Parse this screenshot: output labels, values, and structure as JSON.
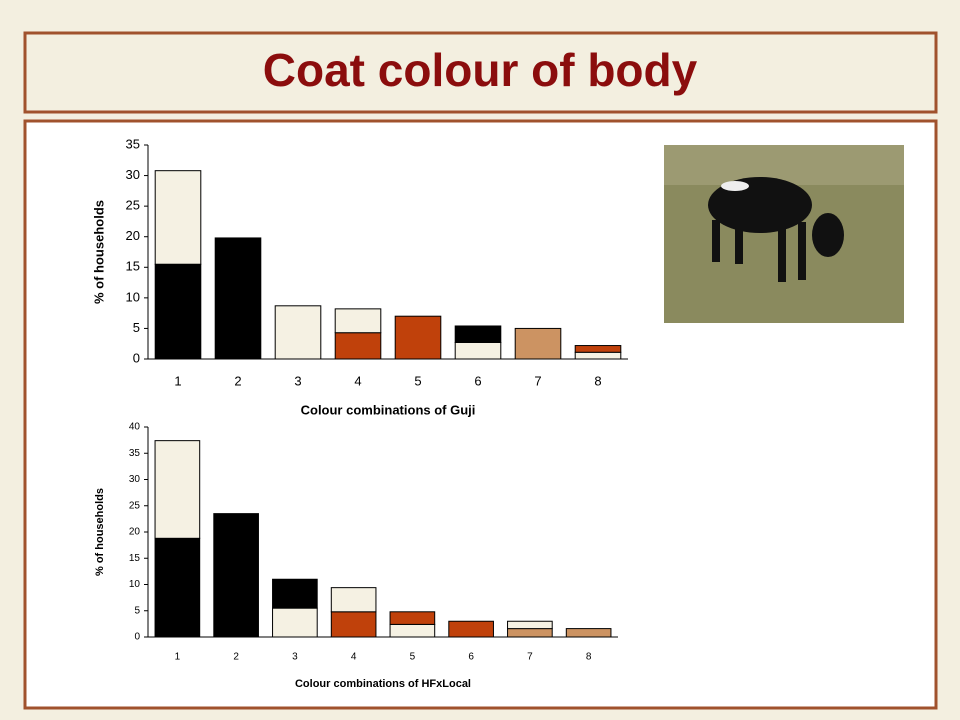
{
  "title": "Coat colour of body",
  "chart_data": [
    {
      "type": "bar",
      "stacked": true,
      "x_label": "Colour combinations of Guji",
      "y_label": "% of households",
      "categories": [
        "1",
        "2",
        "3",
        "4",
        "5",
        "6",
        "7",
        "8"
      ],
      "series": [
        {
          "colors": [
            "#000000",
            "#000000",
            "#f5f1e3",
            "#c0410b",
            "#c0410b",
            "#f5f1e3",
            "#cc9362",
            "#f5f1e3"
          ],
          "values": [
            15.5,
            19.8,
            8.7,
            4.3,
            7.0,
            2.7,
            5.0,
            1.1
          ]
        },
        {
          "colors": [
            "#f5f1e3",
            null,
            null,
            "#f5f1e3",
            null,
            "#000000",
            null,
            "#c0410b"
          ],
          "values": [
            15.3,
            null,
            null,
            3.9,
            null,
            2.7,
            null,
            1.1
          ]
        }
      ],
      "ylim": [
        0,
        35
      ],
      "yticks": [
        0,
        5,
        10,
        15,
        20,
        25,
        30,
        35
      ]
    },
    {
      "type": "bar",
      "stacked": true,
      "x_label": "Colour combinations of HFxLocal",
      "y_label": "% of households",
      "categories": [
        "1",
        "2",
        "3",
        "4",
        "5",
        "6",
        "7",
        "8"
      ],
      "series": [
        {
          "colors": [
            "#000000",
            "#000000",
            "#f5f1e3",
            "#c0410b",
            "#f5f1e3",
            "#c0410b",
            "#cc9362",
            "#cc9362"
          ],
          "values": [
            18.8,
            23.5,
            5.5,
            4.8,
            2.4,
            3.0,
            1.6,
            1.6
          ]
        },
        {
          "colors": [
            "#f5f1e3",
            null,
            "#000000",
            "#f5f1e3",
            "#c0410b",
            null,
            "#f5f1e3",
            null
          ],
          "values": [
            18.6,
            null,
            5.5,
            4.6,
            2.4,
            null,
            1.4,
            null
          ]
        }
      ],
      "ylim": [
        0,
        40
      ],
      "yticks": [
        0,
        5,
        10,
        15,
        20,
        25,
        30,
        35,
        40
      ]
    }
  ]
}
